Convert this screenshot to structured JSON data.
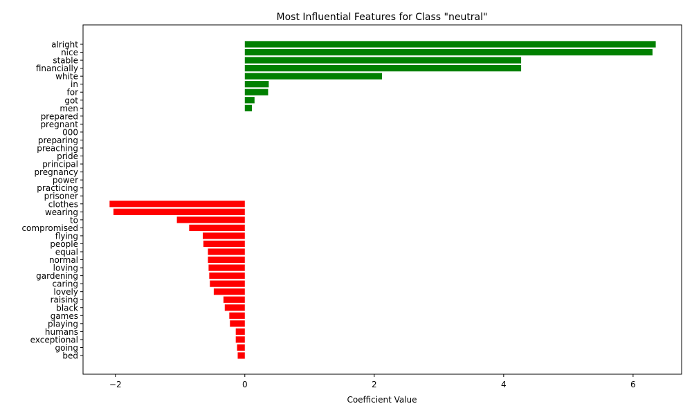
{
  "chart_data": {
    "type": "bar",
    "orientation": "horizontal",
    "title": "Most Influential Features for Class \"neutral\"",
    "xlabel": "Coefficient Value",
    "ylabel": "",
    "xlim": [
      -2.5,
      6.75
    ],
    "xticks": [
      -2,
      0,
      2,
      4,
      6
    ],
    "xtick_labels": [
      "−2",
      "0",
      "2",
      "4",
      "6"
    ],
    "grid": false,
    "legend": "none",
    "positive_color": "#008000",
    "negative_color": "#ff0000",
    "categories": [
      "alright",
      "nice",
      "stable",
      "financially",
      "white",
      "in",
      "for",
      "got",
      "men",
      "prepared",
      "pregnant",
      "000",
      "preparing",
      "preaching",
      "pride",
      "principal",
      "pregnancy",
      "power",
      "practicing",
      "prisoner",
      "clothes",
      "wearing",
      "to",
      "compromised",
      "flying",
      "people",
      "equal",
      "normal",
      "loving",
      "gardening",
      "caring",
      "lovely",
      "raising",
      "black",
      "games",
      "playing",
      "humans",
      "exceptional",
      "going",
      "bed"
    ],
    "values": [
      6.35,
      6.3,
      4.27,
      4.27,
      2.12,
      0.37,
      0.36,
      0.15,
      0.11,
      0,
      0,
      0,
      0,
      0,
      0,
      0,
      0,
      0,
      0,
      0,
      -2.09,
      -2.03,
      -1.05,
      -0.86,
      -0.65,
      -0.64,
      -0.57,
      -0.57,
      -0.56,
      -0.55,
      -0.54,
      -0.48,
      -0.33,
      -0.31,
      -0.24,
      -0.23,
      -0.14,
      -0.14,
      -0.12,
      -0.11
    ]
  }
}
